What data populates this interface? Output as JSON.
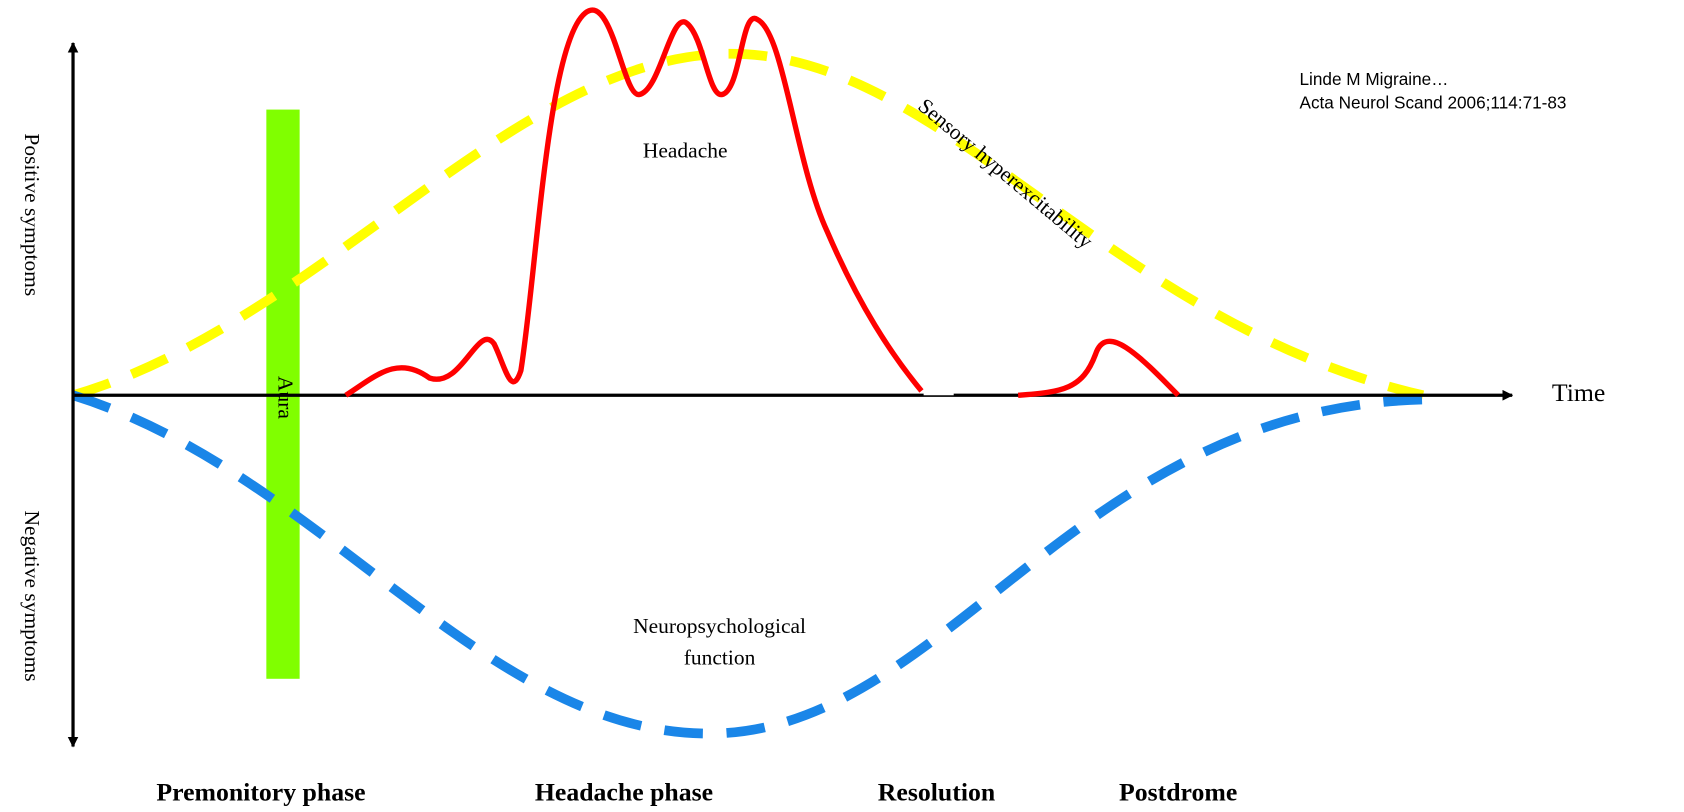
{
  "axes": {
    "y_positive": "Positive symptoms",
    "y_negative": "Negative symptoms",
    "x": "Time"
  },
  "curves": {
    "headache": "Headache",
    "sensory": "Sensory hyperexcitability",
    "neuropsychological": [
      "Neuropsychological",
      "function"
    ],
    "aura": "Aura"
  },
  "phases": [
    "Premonitory phase",
    "Headache phase",
    "Resolution",
    "Postdrome"
  ],
  "citation": [
    "Linde M Migraine…",
    "Acta Neurol Scand 2006;114:71-83"
  ]
}
